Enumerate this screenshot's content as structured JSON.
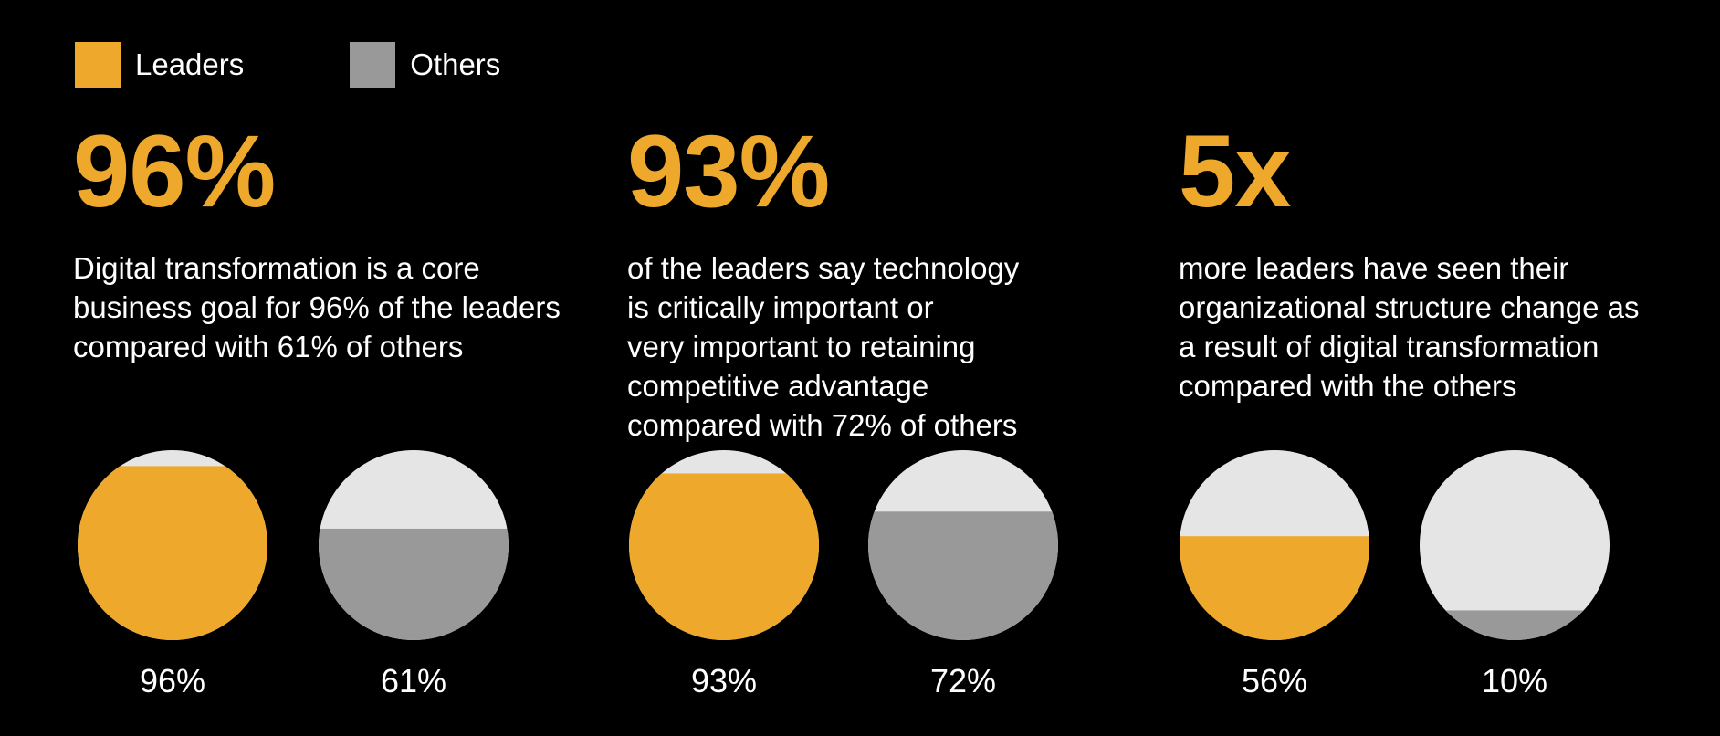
{
  "colors": {
    "leaders": "#EEA92D",
    "others": "#999999",
    "empty": "#E5E5E5",
    "background": "#000000"
  },
  "legend": [
    {
      "label": "Leaders",
      "color": "#EEA92D"
    },
    {
      "label": "Others",
      "color": "#999999"
    }
  ],
  "stats": [
    {
      "headline": "96%",
      "lines": [
        "Digital transformation is a core",
        "business goal for 96% of the leaders",
        "compared with 61% of others"
      ]
    },
    {
      "headline": "93%",
      "lines": [
        "of the leaders say technology",
        "is critically important or",
        "very important to retaining",
        "competitive advantage",
        "compared with 72% of others"
      ]
    },
    {
      "headline": "5x",
      "lines": [
        "more leaders have seen their",
        "organizational structure change as",
        "a result of digital transformation",
        "compared with the others"
      ]
    }
  ],
  "chart_data": {
    "type": "pie",
    "series": [
      {
        "name": "Leaders",
        "values": [
          96,
          93,
          56
        ]
      },
      {
        "name": "Others",
        "values": [
          61,
          72,
          10
        ]
      }
    ],
    "circles": [
      {
        "series": "Leaders",
        "value": 96,
        "label": "96%"
      },
      {
        "series": "Others",
        "value": 61,
        "label": "61%"
      },
      {
        "series": "Leaders",
        "value": 93,
        "label": "93%"
      },
      {
        "series": "Others",
        "value": 72,
        "label": "72%"
      },
      {
        "series": "Leaders",
        "value": 56,
        "label": "56%"
      },
      {
        "series": "Others",
        "value": 10,
        "label": "10%"
      }
    ]
  }
}
